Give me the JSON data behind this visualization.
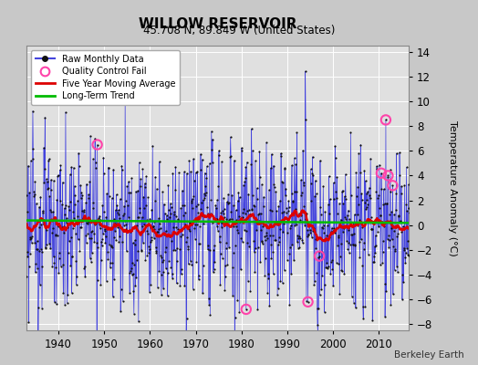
{
  "title": "WILLOW RESERVOIR",
  "subtitle": "45.708 N, 89.849 W (United States)",
  "ylabel": "Temperature Anomaly (°C)",
  "credit": "Berkeley Earth",
  "xlim": [
    1933,
    2016.5
  ],
  "ylim": [
    -8.5,
    14.5
  ],
  "yticks": [
    -8,
    -6,
    -4,
    -2,
    0,
    2,
    4,
    6,
    8,
    10,
    12,
    14
  ],
  "xticks": [
    1940,
    1950,
    1960,
    1970,
    1980,
    1990,
    2000,
    2010
  ],
  "bg_color": "#c8c8c8",
  "plot_bg_color": "#e0e0e0",
  "grid_color": "#ffffff",
  "raw_line_color": "#4444dd",
  "raw_fill_color": "#8888ee",
  "raw_dot_color": "#111111",
  "qc_fail_color": "#ff44aa",
  "moving_avg_color": "#dd0000",
  "trend_color": "#00bb00",
  "start_year": 1933,
  "n_months": 1008,
  "seed": 123,
  "legend_loc": "upper left",
  "figsize": [
    5.24,
    4.0
  ],
  "dpi": 100
}
